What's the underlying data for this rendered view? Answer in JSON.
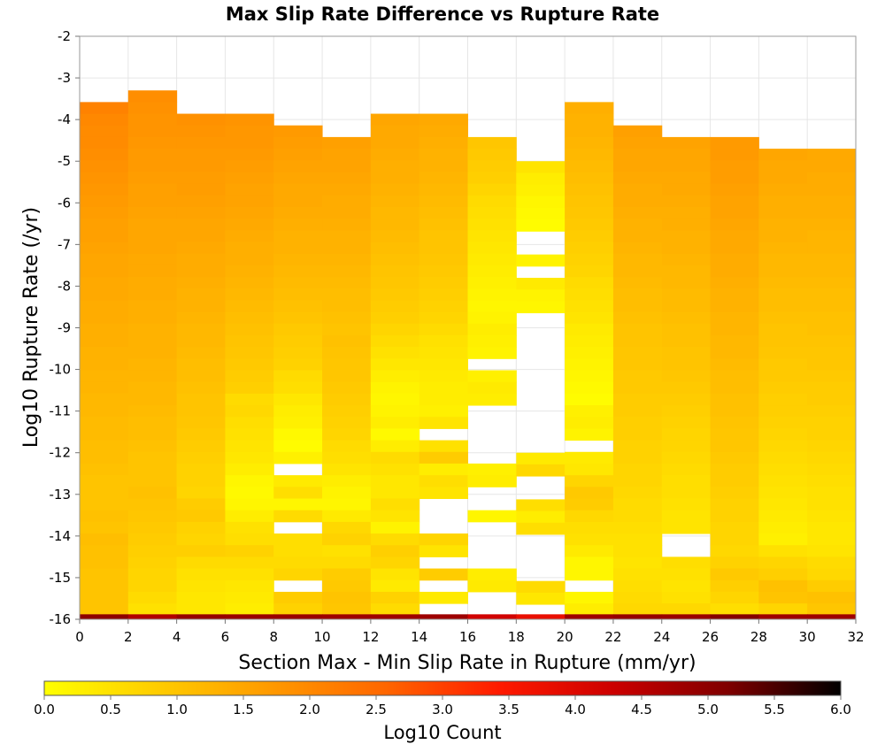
{
  "chart_data": {
    "type": "heatmap",
    "title": "Max Slip Rate Difference vs Rupture Rate",
    "xlabel": "Section Max - Min Slip Rate in Rupture (mm/yr)",
    "ylabel": "Log10 Rupture Rate (/yr)",
    "colorbar_label": "Log10 Count",
    "xlim": [
      0,
      32
    ],
    "ylim": [
      -16,
      -2
    ],
    "x_ticks": [
      "0",
      "2",
      "4",
      "6",
      "8",
      "10",
      "12",
      "14",
      "16",
      "18",
      "20",
      "22",
      "24",
      "26",
      "28",
      "30",
      "32"
    ],
    "y_ticks": [
      "-2",
      "-3",
      "-4",
      "-5",
      "-6",
      "-7",
      "-8",
      "-9",
      "-10",
      "-11",
      "-12",
      "-13",
      "-14",
      "-15",
      "-16"
    ],
    "colorbar_ticks": [
      "0.0",
      "0.5",
      "1.0",
      "1.5",
      "2.0",
      "2.5",
      "3.0",
      "3.5",
      "4.0",
      "4.5",
      "5.0",
      "5.5",
      "6.0"
    ],
    "colorbar_range": [
      0,
      6
    ],
    "colormap": [
      "#ffff00",
      "#ffcc00",
      "#ff9900",
      "#ff6600",
      "#ff1a00",
      "#cc0000",
      "#800000",
      "#000000"
    ],
    "x_bin_width": 2,
    "y_bin_height": 0.28,
    "columns": [
      {
        "x": 1,
        "top": -3.58,
        "values": [
          2.1,
          2.0,
          1.95,
          1.95,
          1.9,
          1.85,
          1.8,
          1.75,
          1.7,
          1.65,
          1.6,
          1.6,
          1.55,
          1.5,
          1.5,
          1.45,
          1.45,
          1.4,
          1.4,
          1.35,
          1.35,
          1.3,
          1.3,
          1.25,
          1.25,
          1.2,
          1.2,
          1.15,
          1.15,
          1.1,
          1.1,
          1.05,
          1.0,
          1.0,
          1.0,
          1.05,
          1.0,
          1.1,
          1.05,
          1.05,
          1.0,
          1.0,
          1.0,
          1.0,
          1.1,
          1.1,
          1.1,
          0.9
        ]
      },
      {
        "x": 3,
        "top": -3.3,
        "values": [
          1.9,
          1.85,
          1.8,
          1.8,
          1.75,
          1.7,
          1.7,
          1.65,
          1.6,
          1.6,
          1.55,
          1.5,
          1.5,
          1.5,
          1.45,
          1.45,
          1.4,
          1.4,
          1.35,
          1.35,
          1.3,
          1.3,
          1.3,
          1.25,
          1.25,
          1.2,
          1.2,
          1.15,
          1.1,
          1.1,
          1.05,
          1.0,
          1.0,
          1.0,
          1.05,
          1.0,
          0.95,
          0.9,
          0.85,
          0.8,
          0.75,
          0.7,
          0.7,
          0.6,
          0.5,
          0.45,
          0.3,
          0.25,
          0.25
        ]
      },
      {
        "x": 5,
        "top": -3.86,
        "values": [
          1.85,
          1.8,
          1.75,
          1.7,
          1.7,
          1.65,
          1.65,
          1.6,
          1.55,
          1.5,
          1.5,
          1.45,
          1.4,
          1.4,
          1.35,
          1.3,
          1.3,
          1.25,
          1.2,
          1.2,
          1.15,
          1.1,
          1.1,
          1.05,
          1.0,
          1.0,
          0.95,
          0.9,
          0.85,
          0.8,
          0.75,
          0.75,
          0.7,
          0.85,
          0.9,
          0.75,
          0.7,
          0.8,
          0.6,
          0.5,
          0.45,
          0.4,
          0.4,
          0.35,
          0.3
        ]
      },
      {
        "x": 7,
        "top": -3.86,
        "values": [
          1.8,
          1.75,
          1.75,
          1.7,
          1.65,
          1.6,
          1.55,
          1.55,
          1.5,
          1.45,
          1.4,
          1.35,
          1.35,
          1.3,
          1.25,
          1.2,
          1.15,
          1.1,
          1.05,
          1.0,
          0.95,
          0.9,
          0.85,
          0.8,
          0.6,
          0.65,
          0.55,
          0.5,
          0.45,
          0.4,
          0.3,
          0.15,
          0.1,
          0.15,
          0.3,
          0.5,
          0.55,
          0.75,
          0.6,
          0.5,
          0.4,
          0.35,
          0.3,
          0.2
        ]
      },
      {
        "x": 9,
        "top": -4.14,
        "values": [
          1.7,
          1.65,
          1.6,
          1.55,
          1.5,
          1.45,
          1.45,
          1.4,
          1.35,
          1.3,
          1.3,
          1.25,
          1.2,
          1.15,
          1.1,
          1.05,
          1.0,
          0.9,
          0.85,
          0.8,
          0.75,
          0.6,
          0.55,
          0.4,
          0.3,
          0.25,
          0.1,
          0.05,
          0.25,
          null,
          0.35,
          0.55,
          0.15,
          0.6,
          null,
          0.55,
          0.55,
          0.6,
          0.7,
          null,
          0.85,
          0.75,
          0.3,
          0.5,
          0.5,
          0.85,
          0.9,
          null,
          null,
          null,
          null,
          null,
          null,
          null,
          null,
          null,
          null,
          null,
          null,
          null,
          null,
          0.4,
          0.7
        ]
      },
      {
        "x": 11,
        "top": -4.42,
        "values": [
          1.6,
          1.55,
          1.55,
          1.5,
          1.45,
          1.4,
          1.4,
          1.35,
          1.3,
          1.3,
          1.25,
          1.2,
          1.15,
          1.1,
          1.1,
          1.05,
          1.0,
          1.05,
          1.0,
          0.95,
          0.95,
          0.9,
          0.85,
          0.8,
          0.75,
          0.7,
          0.6,
          0.55,
          0.45,
          0.3,
          0.2,
          0.15,
          0.35,
          0.65,
          0.75,
          0.5,
          0.6,
          0.85,
          0.9,
          1.0,
          0.95,
          0.9,
          null,
          null,
          null,
          null,
          null,
          0.3,
          0.85,
          1.3,
          1.55,
          1.35,
          1.35,
          1.1
        ]
      },
      {
        "x": 13,
        "top": -3.86,
        "values": [
          1.5,
          1.45,
          1.45,
          1.4,
          1.35,
          1.35,
          1.3,
          1.25,
          1.2,
          1.2,
          1.15,
          1.1,
          1.05,
          1.0,
          0.95,
          0.9,
          0.85,
          0.8,
          0.7,
          0.6,
          0.5,
          0.4,
          0.3,
          0.2,
          0.15,
          0.2,
          0.3,
          0.1,
          0.3,
          0.6,
          0.5,
          0.4,
          0.4,
          0.55,
          0.45,
          0.2,
          0.6,
          0.8,
          0.7,
          0.45,
          0.35,
          0.75,
          0.6,
          null,
          null,
          null,
          null,
          null,
          null,
          null,
          null,
          null,
          null,
          0.5,
          0.25,
          0.05,
          0.05
        ]
      },
      {
        "x": 15,
        "top": -3.86,
        "values": [
          1.45,
          1.4,
          1.35,
          1.3,
          1.3,
          1.25,
          1.2,
          1.15,
          1.1,
          1.05,
          1.0,
          1.0,
          0.95,
          0.9,
          0.85,
          0.8,
          0.75,
          0.7,
          0.6,
          0.5,
          0.45,
          0.4,
          0.35,
          0.3,
          0.3,
          0.25,
          0.45,
          null,
          0.5,
          0.85,
          0.3,
          0.55,
          0.45,
          null,
          null,
          null,
          0.7,
          0.45,
          null,
          0.85,
          null,
          0.35,
          null,
          0.7,
          0.15,
          null,
          0.8,
          1.35,
          1.2,
          1.55
        ]
      },
      {
        "x": 17,
        "top": -4.42,
        "values": [
          0.95,
          0.9,
          0.85,
          0.8,
          0.7,
          0.6,
          0.55,
          0.5,
          0.45,
          0.4,
          0.35,
          0.3,
          0.25,
          0.2,
          0.15,
          0.2,
          0.3,
          0.25,
          0.2,
          null,
          0.25,
          0.35,
          0.3,
          null,
          null,
          null,
          null,
          null,
          0.25,
          0.3,
          null,
          null,
          0.15,
          null,
          null,
          null,
          null,
          0.3,
          0.35,
          null,
          null,
          null,
          null,
          null,
          null,
          null,
          null,
          0.25,
          null,
          0.45,
          0.35,
          0.15,
          null,
          0.35,
          null,
          0.3
        ]
      },
      {
        "x": 19,
        "top": -5.0,
        "values": [
          0.45,
          0.3,
          0.25,
          0.15,
          0.1,
          0.05,
          null,
          null,
          0.2,
          null,
          0.35,
          0.2,
          0.15,
          null,
          null,
          null,
          null,
          null,
          null,
          null,
          null,
          null,
          null,
          null,
          null,
          0.35,
          0.65,
          null,
          null,
          0.55,
          0.3,
          0.55,
          null,
          null,
          null,
          null,
          0.6,
          0.4,
          null,
          null,
          null,
          null,
          null,
          null,
          null,
          null,
          0.45,
          0.75,
          0.8,
          0.9
        ]
      },
      {
        "x": 21,
        "top": -3.58,
        "values": [
          1.35,
          1.3,
          1.3,
          1.25,
          1.2,
          1.15,
          1.1,
          1.05,
          1.0,
          0.95,
          0.9,
          0.85,
          0.8,
          0.75,
          0.7,
          0.6,
          0.55,
          0.5,
          0.45,
          0.35,
          0.3,
          0.25,
          0.2,
          0.15,
          0.1,
          0.05,
          0.25,
          0.3,
          0.2,
          null,
          0.35,
          0.4,
          0.7,
          0.9,
          0.85,
          0.65,
          0.55,
          0.5,
          0.35,
          0.15,
          0.15,
          null,
          0.15,
          0.3,
          0.6,
          null,
          0.65,
          0.9,
          0.85,
          0.85,
          0.9
        ]
      },
      {
        "x": 23,
        "top": -4.14,
        "values": [
          1.6,
          1.55,
          1.5,
          1.5,
          1.45,
          1.4,
          1.4,
          1.35,
          1.3,
          1.3,
          1.25,
          1.2,
          1.2,
          1.15,
          1.1,
          1.1,
          1.05,
          1.0,
          1.0,
          0.95,
          0.95,
          0.9,
          0.9,
          0.85,
          0.85,
          0.8,
          0.8,
          0.75,
          0.75,
          0.7,
          0.7,
          0.65,
          0.6,
          0.6,
          0.55,
          0.5,
          0.5,
          0.45,
          0.5,
          0.55,
          0.6,
          0.65,
          0.7,
          0.6,
          0.45,
          0.35
        ]
      },
      {
        "x": 25,
        "top": -4.42,
        "values": [
          1.55,
          1.5,
          1.5,
          1.45,
          1.45,
          1.4,
          1.35,
          1.35,
          1.3,
          1.3,
          1.25,
          1.2,
          1.2,
          1.15,
          1.15,
          1.1,
          1.05,
          1.05,
          1.0,
          1.0,
          0.95,
          0.9,
          0.85,
          0.8,
          0.75,
          0.7,
          0.7,
          0.65,
          0.6,
          0.55,
          0.55,
          0.5,
          0.45,
          0.45,
          null,
          null,
          0.55,
          0.5,
          0.45,
          0.5,
          0.65,
          0.6,
          0.75,
          0.7,
          0.4,
          0.35
        ]
      },
      {
        "x": 27,
        "top": -4.42,
        "values": [
          1.7,
          1.7,
          1.65,
          1.65,
          1.6,
          1.55,
          1.55,
          1.5,
          1.45,
          1.45,
          1.4,
          1.4,
          1.35,
          1.3,
          1.3,
          1.25,
          1.25,
          1.2,
          1.2,
          1.15,
          1.1,
          1.1,
          1.05,
          1.05,
          1.0,
          0.95,
          0.95,
          0.9,
          0.85,
          0.85,
          0.8,
          0.75,
          0.75,
          0.7,
          0.7,
          0.65,
          0.75,
          0.9,
          0.8,
          0.7,
          0.55,
          0.35,
          0.3,
          0.25,
          0.2,
          0.15
        ]
      },
      {
        "x": 29,
        "top": -4.7,
        "values": [
          1.5,
          1.45,
          1.45,
          1.4,
          1.35,
          1.35,
          1.3,
          1.3,
          1.25,
          1.2,
          1.2,
          1.15,
          1.1,
          1.1,
          1.05,
          1.0,
          1.0,
          0.95,
          0.9,
          0.9,
          0.85,
          0.8,
          0.8,
          0.75,
          0.7,
          0.65,
          0.6,
          0.55,
          0.5,
          0.45,
          0.4,
          0.35,
          0.3,
          0.25,
          0.5,
          0.7,
          0.8,
          1.05,
          1.0,
          0.7,
          0.4,
          0.15
        ]
      },
      {
        "x": 31,
        "top": -4.7,
        "values": [
          1.45,
          1.45,
          1.4,
          1.4,
          1.35,
          1.35,
          1.3,
          1.25,
          1.25,
          1.2,
          1.2,
          1.15,
          1.1,
          1.1,
          1.05,
          1.05,
          1.0,
          0.95,
          0.95,
          0.9,
          0.85,
          0.85,
          0.8,
          0.75,
          0.75,
          0.7,
          0.65,
          0.6,
          0.55,
          0.5,
          0.5,
          0.45,
          0.4,
          0.4,
          0.45,
          0.6,
          0.65,
          0.85,
          1.05,
          0.95,
          0.7,
          0.5
        ]
      }
    ],
    "bottom_row": {
      "y_from": -16.0,
      "y_to": -15.88,
      "values": [
        5.0,
        4.6,
        4.9,
        4.85,
        4.85,
        4.8,
        4.8,
        4.8,
        4.2,
        3.8,
        4.8,
        4.9,
        4.85,
        5.1,
        4.8,
        4.8
      ]
    }
  }
}
